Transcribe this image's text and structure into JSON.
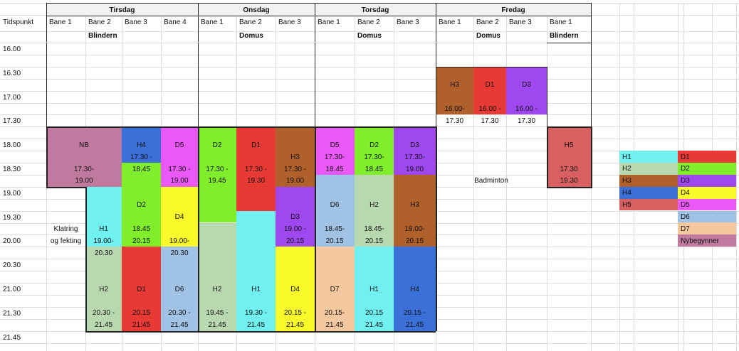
{
  "colors": {
    "NB": "#c07aa0",
    "H1": "#70f0f0",
    "H2": "#b8d8b0",
    "H3": "#b0602a",
    "H4": "#3a70d8",
    "H5": "#d86060",
    "D1": "#e83a34",
    "D2": "#80ee2a",
    "D3": "#a048f0",
    "D4": "#fafa2a",
    "D5": "#ea58f6",
    "D6": "#a0c2e4",
    "D7": "#f6c8a0",
    "Nybegynner": "#c07aa0"
  },
  "days": [
    "Tirsdag",
    "Onsdag",
    "Torsdag",
    "Fredag"
  ],
  "time_header": "Tidspunkt",
  "courts": [
    "Bane 1",
    "Bane 2",
    "Bane 3",
    "Bane 4",
    "Bane 1",
    "Bane 2",
    "Bane 3",
    "Bane 1",
    "Bane 2",
    "Bane 3",
    "Bane 1",
    "Bane 2",
    "Bane 3",
    "Bane 1"
  ],
  "venues": [
    {
      "col": 1,
      "text": "Blindern"
    },
    {
      "col": 5,
      "text": "Domus"
    },
    {
      "col": 8,
      "text": "Domus"
    },
    {
      "col": 11,
      "text": "Domus"
    },
    {
      "col": 13,
      "text": "Blindern"
    }
  ],
  "times": [
    "16.00",
    "",
    "16.30",
    "",
    "17.00",
    "",
    "17.30",
    "",
    "18.00",
    "",
    "18.30",
    "",
    "19.00",
    "",
    "19.30",
    "",
    "20.00",
    "",
    "20.30",
    "",
    "21.00",
    "",
    "21.30",
    "",
    "21.45"
  ],
  "blocks": [
    {
      "col": 0,
      "span": 2,
      "r0": 7,
      "r1": 12,
      "color": "NB"
    },
    {
      "col": 2,
      "span": 1,
      "r0": 7,
      "r1": 10,
      "color": "H4"
    },
    {
      "col": 3,
      "span": 1,
      "r0": 7,
      "r1": 12,
      "color": "D5"
    },
    {
      "col": 4,
      "span": 1,
      "r0": 7,
      "r1": 15,
      "color": "D2"
    },
    {
      "col": 5,
      "span": 1,
      "r0": 7,
      "r1": 14,
      "color": "D1"
    },
    {
      "col": 6,
      "span": 1,
      "r0": 7,
      "r1": 12,
      "color": "H3"
    },
    {
      "col": 7,
      "span": 1,
      "r0": 7,
      "r1": 11,
      "color": "D5"
    },
    {
      "col": 8,
      "span": 1,
      "r0": 7,
      "r1": 11,
      "color": "D2"
    },
    {
      "col": 9,
      "span": 1,
      "r0": 7,
      "r1": 11,
      "color": "D3"
    },
    {
      "col": 10,
      "span": 1,
      "r0": 2,
      "r1": 6,
      "color": "H3"
    },
    {
      "col": 11,
      "span": 1,
      "r0": 2,
      "r1": 6,
      "color": "D1"
    },
    {
      "col": 12,
      "span": 1,
      "r0": 2,
      "r1": 6,
      "color": "D3"
    },
    {
      "col": 13,
      "span": 1,
      "r0": 7,
      "r1": 12,
      "color": "H5"
    },
    {
      "col": 1,
      "span": 1,
      "r0": 12,
      "r1": 17,
      "color": "H1"
    },
    {
      "col": 1,
      "span": 1,
      "r0": 17,
      "r1": 24,
      "color": "H2"
    },
    {
      "col": 2,
      "span": 1,
      "r0": 10,
      "r1": 17,
      "color": "D2"
    },
    {
      "col": 2,
      "span": 1,
      "r0": 17,
      "r1": 24,
      "color": "D1"
    },
    {
      "col": 3,
      "span": 1,
      "r0": 12,
      "r1": 17,
      "color": "D4"
    },
    {
      "col": 3,
      "span": 1,
      "r0": 17,
      "r1": 24,
      "color": "D6"
    },
    {
      "col": 4,
      "span": 1,
      "r0": 15,
      "r1": 24,
      "color": "H2"
    },
    {
      "col": 5,
      "span": 1,
      "r0": 14,
      "r1": 24,
      "color": "H1"
    },
    {
      "col": 6,
      "span": 1,
      "r0": 12,
      "r1": 17,
      "color": "D3"
    },
    {
      "col": 6,
      "span": 1,
      "r0": 17,
      "r1": 24,
      "color": "D4"
    },
    {
      "col": 7,
      "span": 1,
      "r0": 11,
      "r1": 17,
      "color": "D6"
    },
    {
      "col": 7,
      "span": 1,
      "r0": 17,
      "r1": 24,
      "color": "D7"
    },
    {
      "col": 8,
      "span": 1,
      "r0": 11,
      "r1": 17,
      "color": "H2"
    },
    {
      "col": 8,
      "span": 1,
      "r0": 17,
      "r1": 24,
      "color": "H1"
    },
    {
      "col": 9,
      "span": 1,
      "r0": 11,
      "r1": 17,
      "color": "H3"
    },
    {
      "col": 9,
      "span": 1,
      "r0": 17,
      "r1": 24,
      "color": "H4"
    }
  ],
  "labels": [
    {
      "col": 10,
      "row": 3,
      "text": "H3"
    },
    {
      "col": 11,
      "row": 3,
      "text": "D1"
    },
    {
      "col": 12,
      "row": 3,
      "text": "D3"
    },
    {
      "col": 10,
      "row": 5,
      "text": "16.00-"
    },
    {
      "col": 11,
      "row": 5,
      "text": "16.00 -"
    },
    {
      "col": 12,
      "row": 5,
      "text": "16.00 -"
    },
    {
      "col": 10,
      "row": 6,
      "text": "17.30"
    },
    {
      "col": 11,
      "row": 6,
      "text": "17.30"
    },
    {
      "col": 12,
      "row": 6,
      "text": "17.30"
    },
    {
      "col": 0,
      "row": 8,
      "span": 2,
      "text": "NB"
    },
    {
      "col": 2,
      "row": 8,
      "text": "H4"
    },
    {
      "col": 3,
      "row": 8,
      "text": "D5"
    },
    {
      "col": 4,
      "row": 8,
      "text": "D2"
    },
    {
      "col": 5,
      "row": 8,
      "text": "D1"
    },
    {
      "col": 7,
      "row": 8,
      "text": "D5"
    },
    {
      "col": 8,
      "row": 8,
      "text": "D2"
    },
    {
      "col": 9,
      "row": 8,
      "text": "D3"
    },
    {
      "col": 13,
      "row": 8,
      "text": "H5"
    },
    {
      "col": 2,
      "row": 9,
      "text": "17.30 -"
    },
    {
      "col": 6,
      "row": 9,
      "text": "H3"
    },
    {
      "col": 7,
      "row": 9,
      "text": "17.30-"
    },
    {
      "col": 8,
      "row": 9,
      "text": "17.30-"
    },
    {
      "col": 9,
      "row": 9,
      "text": "17.30-"
    },
    {
      "col": 0,
      "row": 10,
      "span": 2,
      "text": "17.30-"
    },
    {
      "col": 2,
      "row": 10,
      "text": "18.45"
    },
    {
      "col": 3,
      "row": 10,
      "text": "17.30 -"
    },
    {
      "col": 4,
      "row": 10,
      "text": "17.30 -"
    },
    {
      "col": 5,
      "row": 10,
      "text": "17.30 -"
    },
    {
      "col": 6,
      "row": 10,
      "text": "17.30 -"
    },
    {
      "col": 7,
      "row": 10,
      "text": "18.45"
    },
    {
      "col": 8,
      "row": 10,
      "text": "18.45"
    },
    {
      "col": 9,
      "row": 10,
      "text": "19.00"
    },
    {
      "col": 13,
      "row": 10,
      "text": "17.30"
    },
    {
      "col": 0,
      "row": 11,
      "span": 2,
      "text": "19.00"
    },
    {
      "col": 3,
      "row": 11,
      "text": "19.00"
    },
    {
      "col": 4,
      "row": 11,
      "text": "19.45"
    },
    {
      "col": 5,
      "row": 11,
      "text": "19.30"
    },
    {
      "col": 6,
      "row": 11,
      "text": "19.00"
    },
    {
      "col": 10,
      "row": 11,
      "span": 3,
      "text": "Badminton"
    },
    {
      "col": 13,
      "row": 11,
      "text": "19.30"
    },
    {
      "col": 2,
      "row": 13,
      "text": "D2"
    },
    {
      "col": 7,
      "row": 13,
      "text": "D6"
    },
    {
      "col": 8,
      "row": 13,
      "text": "H2"
    },
    {
      "col": 9,
      "row": 13,
      "text": "H3"
    },
    {
      "col": 3,
      "row": 14,
      "text": "D4"
    },
    {
      "col": 6,
      "row": 14,
      "text": "D3"
    },
    {
      "col": 0,
      "row": 15,
      "text": "Klatring"
    },
    {
      "col": 1,
      "row": 15,
      "text": "H1"
    },
    {
      "col": 2,
      "row": 15,
      "text": "18.45"
    },
    {
      "col": 6,
      "row": 15,
      "text": "19.00 -"
    },
    {
      "col": 7,
      "row": 15,
      "text": "18.45-"
    },
    {
      "col": 8,
      "row": 15,
      "text": "18.45-"
    },
    {
      "col": 9,
      "row": 15,
      "text": "19.00-"
    },
    {
      "col": 0,
      "row": 16,
      "text": "og fekting"
    },
    {
      "col": 1,
      "row": 16,
      "text": "19.00-"
    },
    {
      "col": 2,
      "row": 16,
      "text": "20.15"
    },
    {
      "col": 3,
      "row": 16,
      "text": "19.00-"
    },
    {
      "col": 6,
      "row": 16,
      "text": "20.15"
    },
    {
      "col": 7,
      "row": 16,
      "text": "20.15"
    },
    {
      "col": 8,
      "row": 16,
      "text": "20.15"
    },
    {
      "col": 9,
      "row": 16,
      "text": "20.15"
    },
    {
      "col": 1,
      "row": 17,
      "text": "20.30"
    },
    {
      "col": 3,
      "row": 17,
      "text": "20.30"
    },
    {
      "col": 1,
      "row": 20,
      "text": "H2"
    },
    {
      "col": 2,
      "row": 20,
      "text": "D1"
    },
    {
      "col": 3,
      "row": 20,
      "text": "D6"
    },
    {
      "col": 4,
      "row": 20,
      "text": "H2"
    },
    {
      "col": 5,
      "row": 20,
      "text": "H1"
    },
    {
      "col": 6,
      "row": 20,
      "text": "D4"
    },
    {
      "col": 7,
      "row": 20,
      "text": "D7"
    },
    {
      "col": 8,
      "row": 20,
      "text": "H1"
    },
    {
      "col": 9,
      "row": 20,
      "text": "H4"
    },
    {
      "col": 1,
      "row": 22,
      "text": "20.30 -"
    },
    {
      "col": 2,
      "row": 22,
      "text": "20.15"
    },
    {
      "col": 3,
      "row": 22,
      "text": "20.30 -"
    },
    {
      "col": 4,
      "row": 22,
      "text": "19.45 -"
    },
    {
      "col": 5,
      "row": 22,
      "text": "19.30 -"
    },
    {
      "col": 6,
      "row": 22,
      "text": "20.15 -"
    },
    {
      "col": 7,
      "row": 22,
      "text": "20.15-"
    },
    {
      "col": 8,
      "row": 22,
      "text": "20.15"
    },
    {
      "col": 9,
      "row": 22,
      "text": "20.15 -"
    },
    {
      "col": 1,
      "row": 23,
      "text": "21.45"
    },
    {
      "col": 2,
      "row": 23,
      "text": "21:45"
    },
    {
      "col": 3,
      "row": 23,
      "text": "21.45"
    },
    {
      "col": 4,
      "row": 23,
      "text": "21.45"
    },
    {
      "col": 5,
      "row": 23,
      "text": "21.45"
    },
    {
      "col": 6,
      "row": 23,
      "text": "21.45"
    },
    {
      "col": 7,
      "row": 23,
      "text": "21.45"
    },
    {
      "col": 8,
      "row": 23,
      "text": "21.45"
    },
    {
      "col": 9,
      "row": 23,
      "text": "21.45"
    }
  ],
  "legend": [
    {
      "left": "H1",
      "right": "D1"
    },
    {
      "left": "H2",
      "right": "D2"
    },
    {
      "left": "H3",
      "right": "D3"
    },
    {
      "left": "H4",
      "right": "D4"
    },
    {
      "left": "H5",
      "right": "D5"
    },
    {
      "left": "",
      "right": "D6"
    },
    {
      "left": "",
      "right": "D7"
    },
    {
      "left": "",
      "right": "Nybegynner"
    }
  ]
}
